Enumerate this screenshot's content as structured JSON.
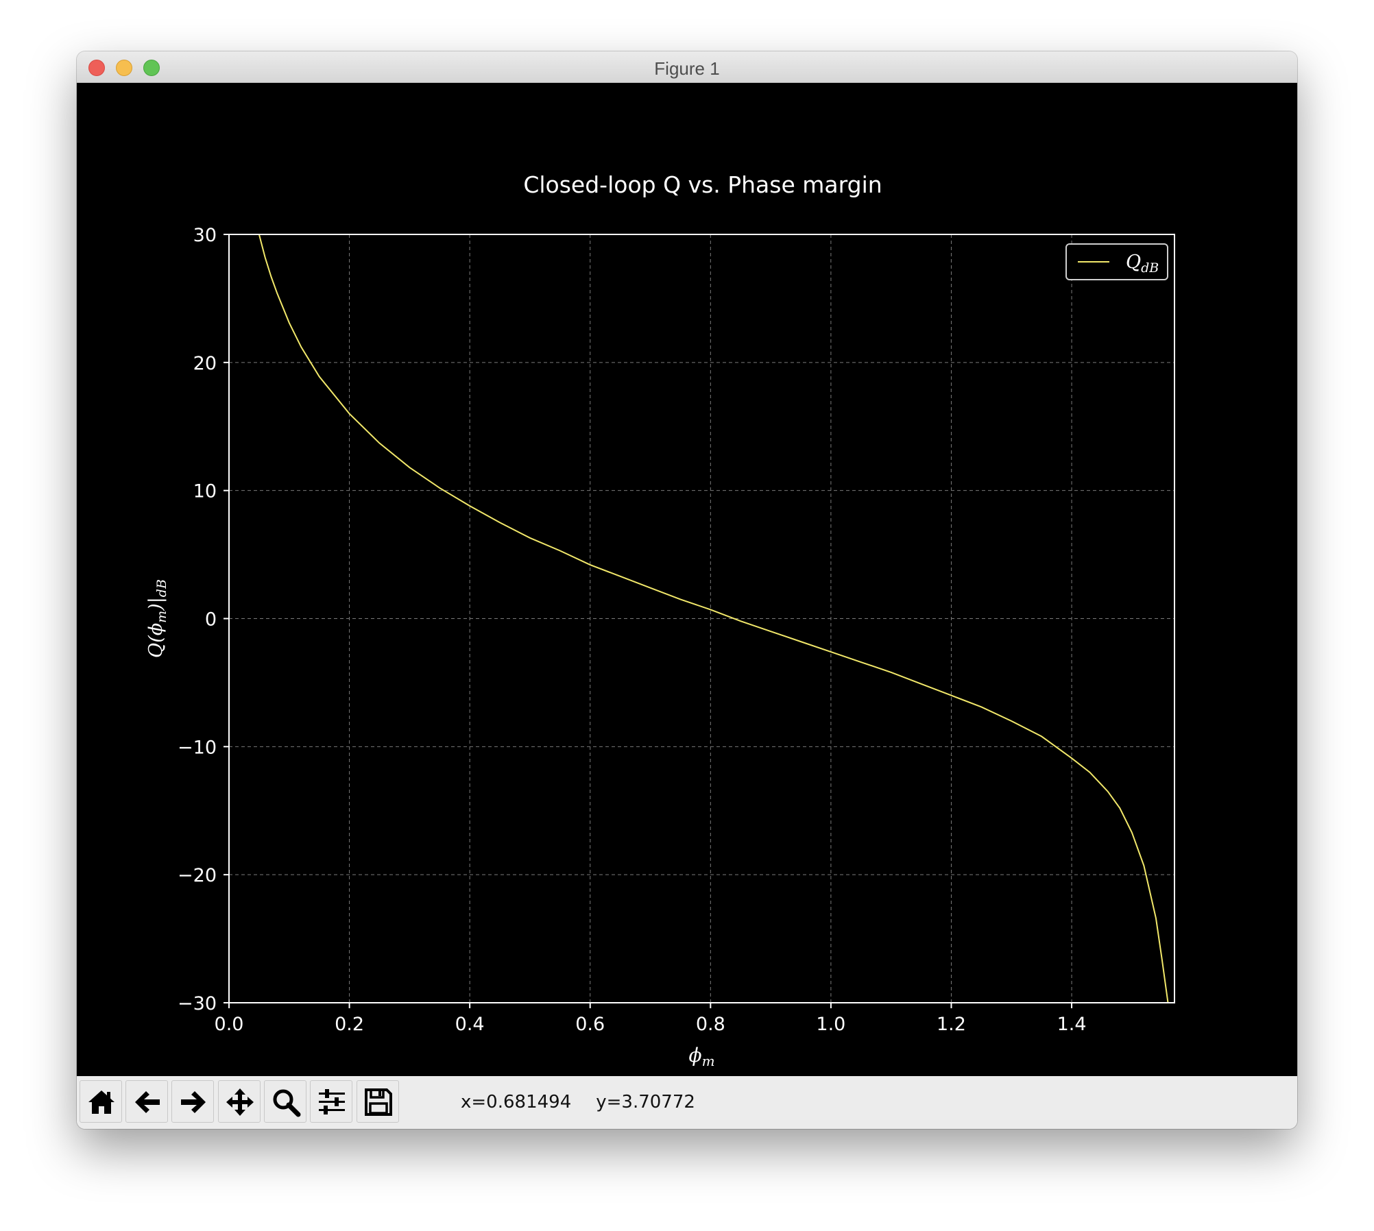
{
  "window": {
    "title": "Figure 1"
  },
  "toolbar": {
    "buttons": [
      {
        "name": "home-button",
        "icon": "home-icon"
      },
      {
        "name": "back-button",
        "icon": "arrow-left-icon"
      },
      {
        "name": "forward-button",
        "icon": "arrow-right-icon"
      },
      {
        "name": "pan-button",
        "icon": "move-icon"
      },
      {
        "name": "zoom-button",
        "icon": "magnifier-icon"
      },
      {
        "name": "configure-subplots-button",
        "icon": "sliders-icon"
      },
      {
        "name": "save-button",
        "icon": "floppy-disk-icon"
      }
    ],
    "coord_x": "x=0.681494",
    "coord_y": "y=3.70772"
  },
  "chart_data": {
    "type": "line",
    "title": "Closed-loop Q vs. Phase margin",
    "xlabel": "ϕm",
    "ylabel": "Q(ϕm)|dB",
    "xlim": [
      0,
      1.5708
    ],
    "ylim": [
      -30,
      30
    ],
    "xticks": [
      "0.0",
      "0.2",
      "0.4",
      "0.6",
      "0.8",
      "1.0",
      "1.2",
      "1.4"
    ],
    "xtick_values": [
      0,
      0.2,
      0.4,
      0.6,
      0.8,
      1.0,
      1.2,
      1.4
    ],
    "yticks": [
      "−30",
      "−20",
      "−10",
      "0",
      "10",
      "20",
      "30"
    ],
    "ytick_values": [
      -30,
      -20,
      -10,
      0,
      10,
      20,
      30
    ],
    "grid": true,
    "legend_position": "top-right",
    "series": [
      {
        "name": "QdB",
        "color": "#f2e86a",
        "x": [
          0.05,
          0.06,
          0.07,
          0.08,
          0.1,
          0.12,
          0.15,
          0.2,
          0.25,
          0.3,
          0.35,
          0.4,
          0.45,
          0.5,
          0.55,
          0.6,
          0.65,
          0.7,
          0.75,
          0.8,
          0.85,
          0.9,
          0.95,
          1.0,
          1.05,
          1.1,
          1.15,
          1.2,
          1.25,
          1.3,
          1.35,
          1.4,
          1.43,
          1.46,
          1.48,
          1.5,
          1.52,
          1.54,
          1.55,
          1.56,
          1.565,
          1.568,
          1.5708
        ],
        "y": [
          30.0,
          28.2,
          26.7,
          25.4,
          23.1,
          21.2,
          18.9,
          16.0,
          13.7,
          11.8,
          10.2,
          8.8,
          7.5,
          6.3,
          5.3,
          4.2,
          3.3,
          2.4,
          1.5,
          0.7,
          -0.2,
          -1.0,
          -1.8,
          -2.6,
          -3.4,
          -4.2,
          -5.1,
          -6.0,
          -6.9,
          -8.0,
          -9.2,
          -10.9,
          -12.0,
          -13.5,
          -14.8,
          -16.7,
          -19.3,
          -23.4,
          -26.6,
          -30.0,
          -30.0,
          -30.0,
          -30.0
        ]
      }
    ]
  }
}
